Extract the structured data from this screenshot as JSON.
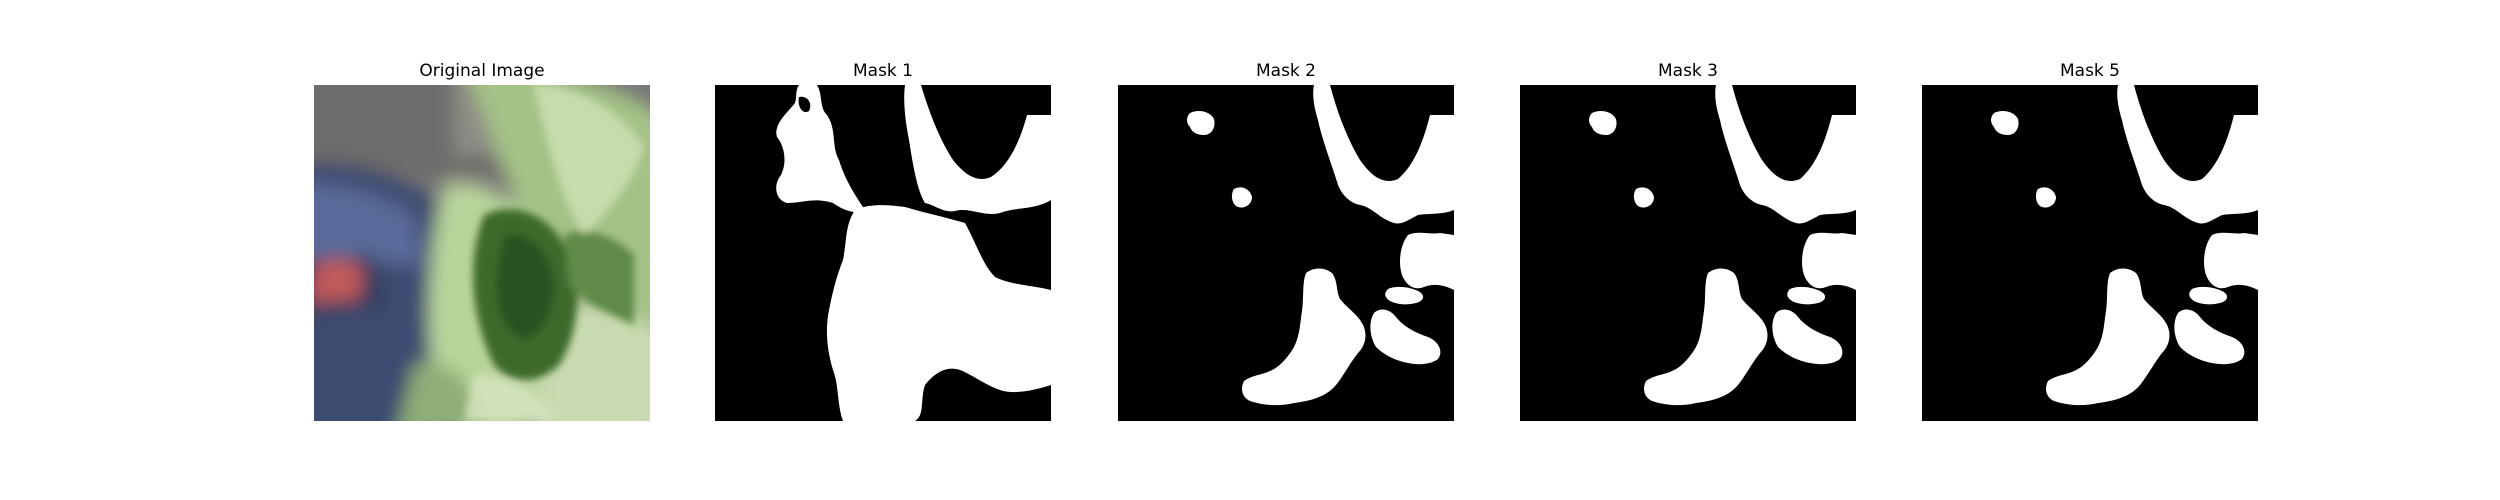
{
  "panels": [
    {
      "id": "original",
      "title": "Original Image"
    },
    {
      "id": "mask1",
      "title": "Mask 1"
    },
    {
      "id": "mask2",
      "title": "Mask 2"
    },
    {
      "id": "mask3",
      "title": "Mask 3"
    },
    {
      "id": "mask5",
      "title": "Mask 5"
    }
  ],
  "colors": {
    "figure_background": "#ffffff",
    "mask_background": "#000000",
    "mask_foreground": "#ffffff",
    "leaf_light": "#b6cf99",
    "leaf_dark": "#3f6a2d",
    "jeans": "#3b4a6e",
    "ground": "#6f6f6f"
  }
}
